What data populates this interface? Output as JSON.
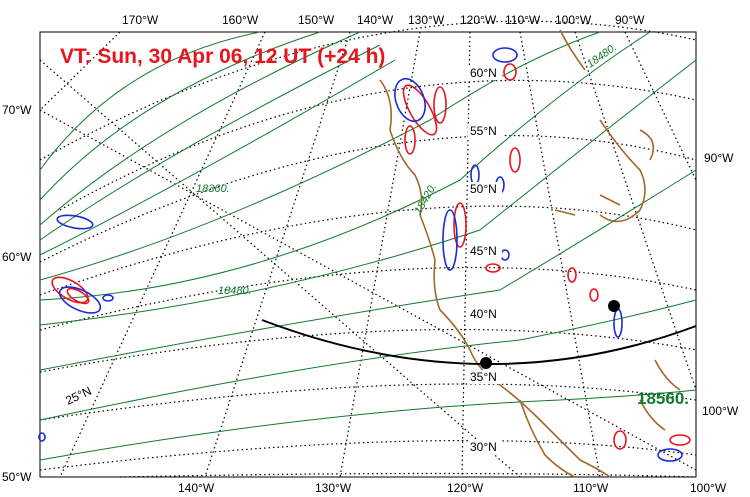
{
  "title": {
    "text": "VT:  Sun, 30 Apr 06, 12 UT (+24 h)",
    "color": "#e8141e"
  },
  "top_lon_labels": [
    "170°W",
    "160°W",
    "150°W",
    "140°W",
    "130°W",
    "120°W",
    "110°W",
    "100°W",
    "90°W"
  ],
  "bottom_lon_labels": [
    "140°W",
    "130°W",
    "120°W",
    "110°W",
    "100°W"
  ],
  "left_labels": [
    "70°W",
    "60°W",
    "50°W"
  ],
  "right_labels": [
    "90°W",
    "100°W"
  ],
  "lat_labels": [
    "60°N",
    "55°N",
    "50°N",
    "45°N",
    "40°N",
    "35°N",
    "30°N",
    "25°N"
  ],
  "contour_labels": [
    "18360.",
    "18420.",
    "18480.",
    "18480.",
    "18560."
  ],
  "colors": {
    "height_contours": "#117a2e",
    "positive_contours": "#e8141e",
    "negative_contours": "#1a2ad8",
    "coastline": "#a0692a",
    "graticule": "#000000",
    "flight_track": "#000000"
  }
}
